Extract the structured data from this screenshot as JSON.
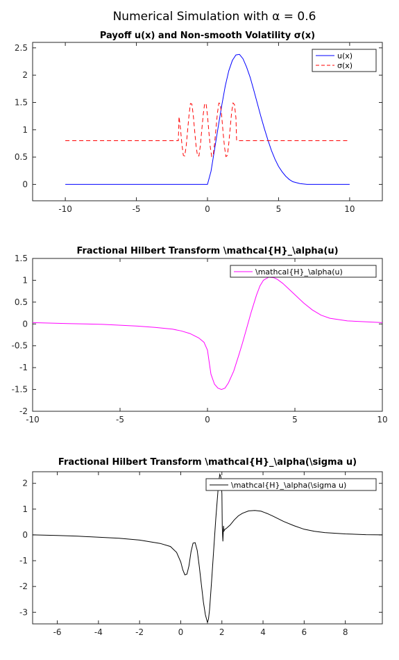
{
  "figure": {
    "suptitle": "Numerical Simulation with α = 0.6"
  },
  "chart_data": [
    {
      "type": "line",
      "title": "Payoff u(x) and Non-smooth Volatility σ(x)",
      "xlabel": "",
      "ylabel": "",
      "xlim": [
        -12.3,
        12.3
      ],
      "ylim": [
        -0.3,
        2.6
      ],
      "xticks": [
        -10,
        -5,
        0,
        5,
        10
      ],
      "yticks": [
        0,
        0.5,
        1,
        1.5,
        2,
        2.5
      ],
      "xtick_labels": [
        "-10",
        "-5",
        "0",
        "5",
        "10"
      ],
      "ytick_labels": [
        "0",
        "0.5",
        "1",
        "1.5",
        "2",
        "2.5"
      ],
      "grid": false,
      "legend": "top-right",
      "series": [
        {
          "name": "u(x)",
          "color": "#0000ff",
          "dash": "solid",
          "x": [
            -10,
            -8,
            -6,
            -4,
            -2,
            0,
            0.25,
            0.5,
            0.75,
            1,
            1.25,
            1.5,
            1.75,
            2,
            2.25,
            2.5,
            2.75,
            3,
            3.25,
            3.5,
            3.75,
            4,
            4.25,
            4.5,
            4.75,
            5,
            5.25,
            5.5,
            5.75,
            6,
            6.5,
            7,
            8,
            9,
            10
          ],
          "y": [
            0,
            0,
            0,
            0,
            0,
            0,
            0.24,
            0.64,
            1.05,
            1.44,
            1.8,
            2.08,
            2.27,
            2.37,
            2.38,
            2.3,
            2.15,
            1.96,
            1.73,
            1.49,
            1.25,
            1.02,
            0.81,
            0.62,
            0.46,
            0.33,
            0.23,
            0.15,
            0.09,
            0.05,
            0.015,
            0,
            0,
            0,
            0
          ]
        },
        {
          "name": "σ(x)",
          "color": "#ff0000",
          "dash": "dashed",
          "x": [
            -10,
            -2.05,
            -2,
            -1.9,
            -1.8,
            -1.7,
            -1.6,
            -1.5,
            -1.4,
            -1.3,
            -1.2,
            -1.1,
            -1,
            -0.9,
            -0.8,
            -0.7,
            -0.6,
            -0.5,
            -0.4,
            -0.3,
            -0.2,
            -0.1,
            0,
            0.1,
            0.2,
            0.3,
            0.4,
            0.5,
            0.6,
            0.7,
            0.8,
            0.9,
            1,
            1.1,
            1.2,
            1.3,
            1.4,
            1.5,
            1.6,
            1.7,
            1.8,
            1.9,
            2,
            2.05,
            10
          ],
          "y": [
            0.8,
            0.8,
            1.24,
            1.02,
            0.74,
            0.53,
            0.52,
            0.7,
            0.98,
            1.27,
            1.48,
            1.47,
            1.27,
            0.97,
            0.7,
            0.52,
            0.52,
            0.72,
            1.0,
            1.28,
            1.48,
            1.48,
            1.26,
            0.96,
            0.68,
            0.51,
            0.53,
            0.74,
            1.03,
            1.3,
            1.49,
            1.48,
            1.25,
            0.95,
            0.68,
            0.51,
            0.53,
            0.75,
            1.04,
            1.32,
            1.49,
            1.46,
            1.22,
            0.8,
            0.8
          ]
        }
      ]
    },
    {
      "type": "line",
      "title": "Fractional Hilbert Transform \\mathcal{H}_\\alpha(u)",
      "xlabel": "",
      "ylabel": "",
      "xlim": [
        -10,
        10
      ],
      "ylim": [
        -2,
        1.5
      ],
      "xticks": [
        -10,
        -5,
        0,
        5,
        10
      ],
      "yticks": [
        -2,
        -1.5,
        -1,
        -0.5,
        0,
        0.5,
        1,
        1.5
      ],
      "xtick_labels": [
        "-10",
        "-5",
        "0",
        "5",
        "10"
      ],
      "ytick_labels": [
        "-2",
        "-1.5",
        "-1",
        "-0.5",
        "0",
        "0.5",
        "1",
        "1.5"
      ],
      "grid": false,
      "legend": "top-right",
      "series": [
        {
          "name": "\\mathcal{H}_\\alpha(u)",
          "color": "#ff00ff",
          "dash": "solid",
          "x": [
            -10,
            -8,
            -6,
            -4,
            -3,
            -2,
            -1.5,
            -1,
            -0.5,
            -0.2,
            0,
            0.1,
            0.2,
            0.4,
            0.6,
            0.8,
            1,
            1.2,
            1.5,
            1.8,
            2,
            2.2,
            2.5,
            2.8,
            3,
            3.2,
            3.5,
            3.8,
            4,
            4.3,
            4.6,
            5,
            5.5,
            6,
            6.5,
            7,
            8,
            9,
            10
          ],
          "y": [
            0.03,
            0.01,
            -0.01,
            -0.05,
            -0.08,
            -0.12,
            -0.16,
            -0.22,
            -0.32,
            -0.42,
            -0.6,
            -0.88,
            -1.15,
            -1.38,
            -1.47,
            -1.5,
            -1.47,
            -1.35,
            -1.08,
            -0.7,
            -0.44,
            -0.16,
            0.27,
            0.66,
            0.87,
            1.0,
            1.07,
            1.06,
            1.02,
            0.93,
            0.82,
            0.67,
            0.48,
            0.32,
            0.2,
            0.13,
            0.07,
            0.05,
            0.03
          ]
        }
      ]
    },
    {
      "type": "line",
      "title": "Fractional Hilbert Transform \\mathcal{H}_\\alpha(\\sigma u)",
      "xlabel": "",
      "ylabel": "",
      "xlim": [
        -7.2,
        9.8
      ],
      "ylim": [
        -3.45,
        2.45
      ],
      "xticks": [
        -6,
        -4,
        -2,
        0,
        2,
        4,
        6,
        8
      ],
      "yticks": [
        -3,
        -2,
        -1,
        0,
        1,
        2
      ],
      "xtick_labels": [
        "-6",
        "-4",
        "-2",
        "0",
        "2",
        "4",
        "6",
        "8"
      ],
      "ytick_labels": [
        "-3",
        "-2",
        "-1",
        "0",
        "1",
        "2"
      ],
      "grid": false,
      "legend": "top-right",
      "series": [
        {
          "name": "\\mathcal{H}_\\alpha(\\sigma u)",
          "color": "#000000",
          "dash": "solid",
          "x": [
            -7.2,
            -6,
            -5,
            -4,
            -3,
            -2,
            -1,
            -0.5,
            -0.2,
            0,
            0.1,
            0.2,
            0.3,
            0.4,
            0.5,
            0.6,
            0.7,
            0.8,
            0.9,
            1.0,
            1.1,
            1.2,
            1.3,
            1.35,
            1.4,
            1.5,
            1.6,
            1.7,
            1.8,
            1.85,
            1.9,
            1.95,
            2.0,
            2.02,
            2.05,
            2.08,
            2.1,
            2.15,
            2.2,
            2.4,
            2.6,
            2.8,
            3.0,
            3.3,
            3.6,
            3.9,
            4.2,
            4.5,
            5.0,
            5.5,
            6.0,
            6.5,
            7.0,
            8.0,
            9.0,
            9.8
          ],
          "y": [
            0.0,
            -0.02,
            -0.05,
            -0.09,
            -0.13,
            -0.2,
            -0.33,
            -0.45,
            -0.68,
            -1.05,
            -1.35,
            -1.55,
            -1.52,
            -1.2,
            -0.65,
            -0.32,
            -0.3,
            -0.6,
            -1.2,
            -1.9,
            -2.6,
            -3.1,
            -3.4,
            -3.25,
            -2.9,
            -1.8,
            -0.6,
            0.6,
            1.6,
            2.1,
            2.35,
            2.25,
            1.6,
            0.3,
            -0.25,
            0.35,
            0.15,
            0.22,
            0.24,
            0.38,
            0.58,
            0.74,
            0.84,
            0.93,
            0.95,
            0.92,
            0.83,
            0.72,
            0.52,
            0.36,
            0.22,
            0.14,
            0.09,
            0.04,
            0.01,
            0.0
          ]
        }
      ]
    }
  ]
}
